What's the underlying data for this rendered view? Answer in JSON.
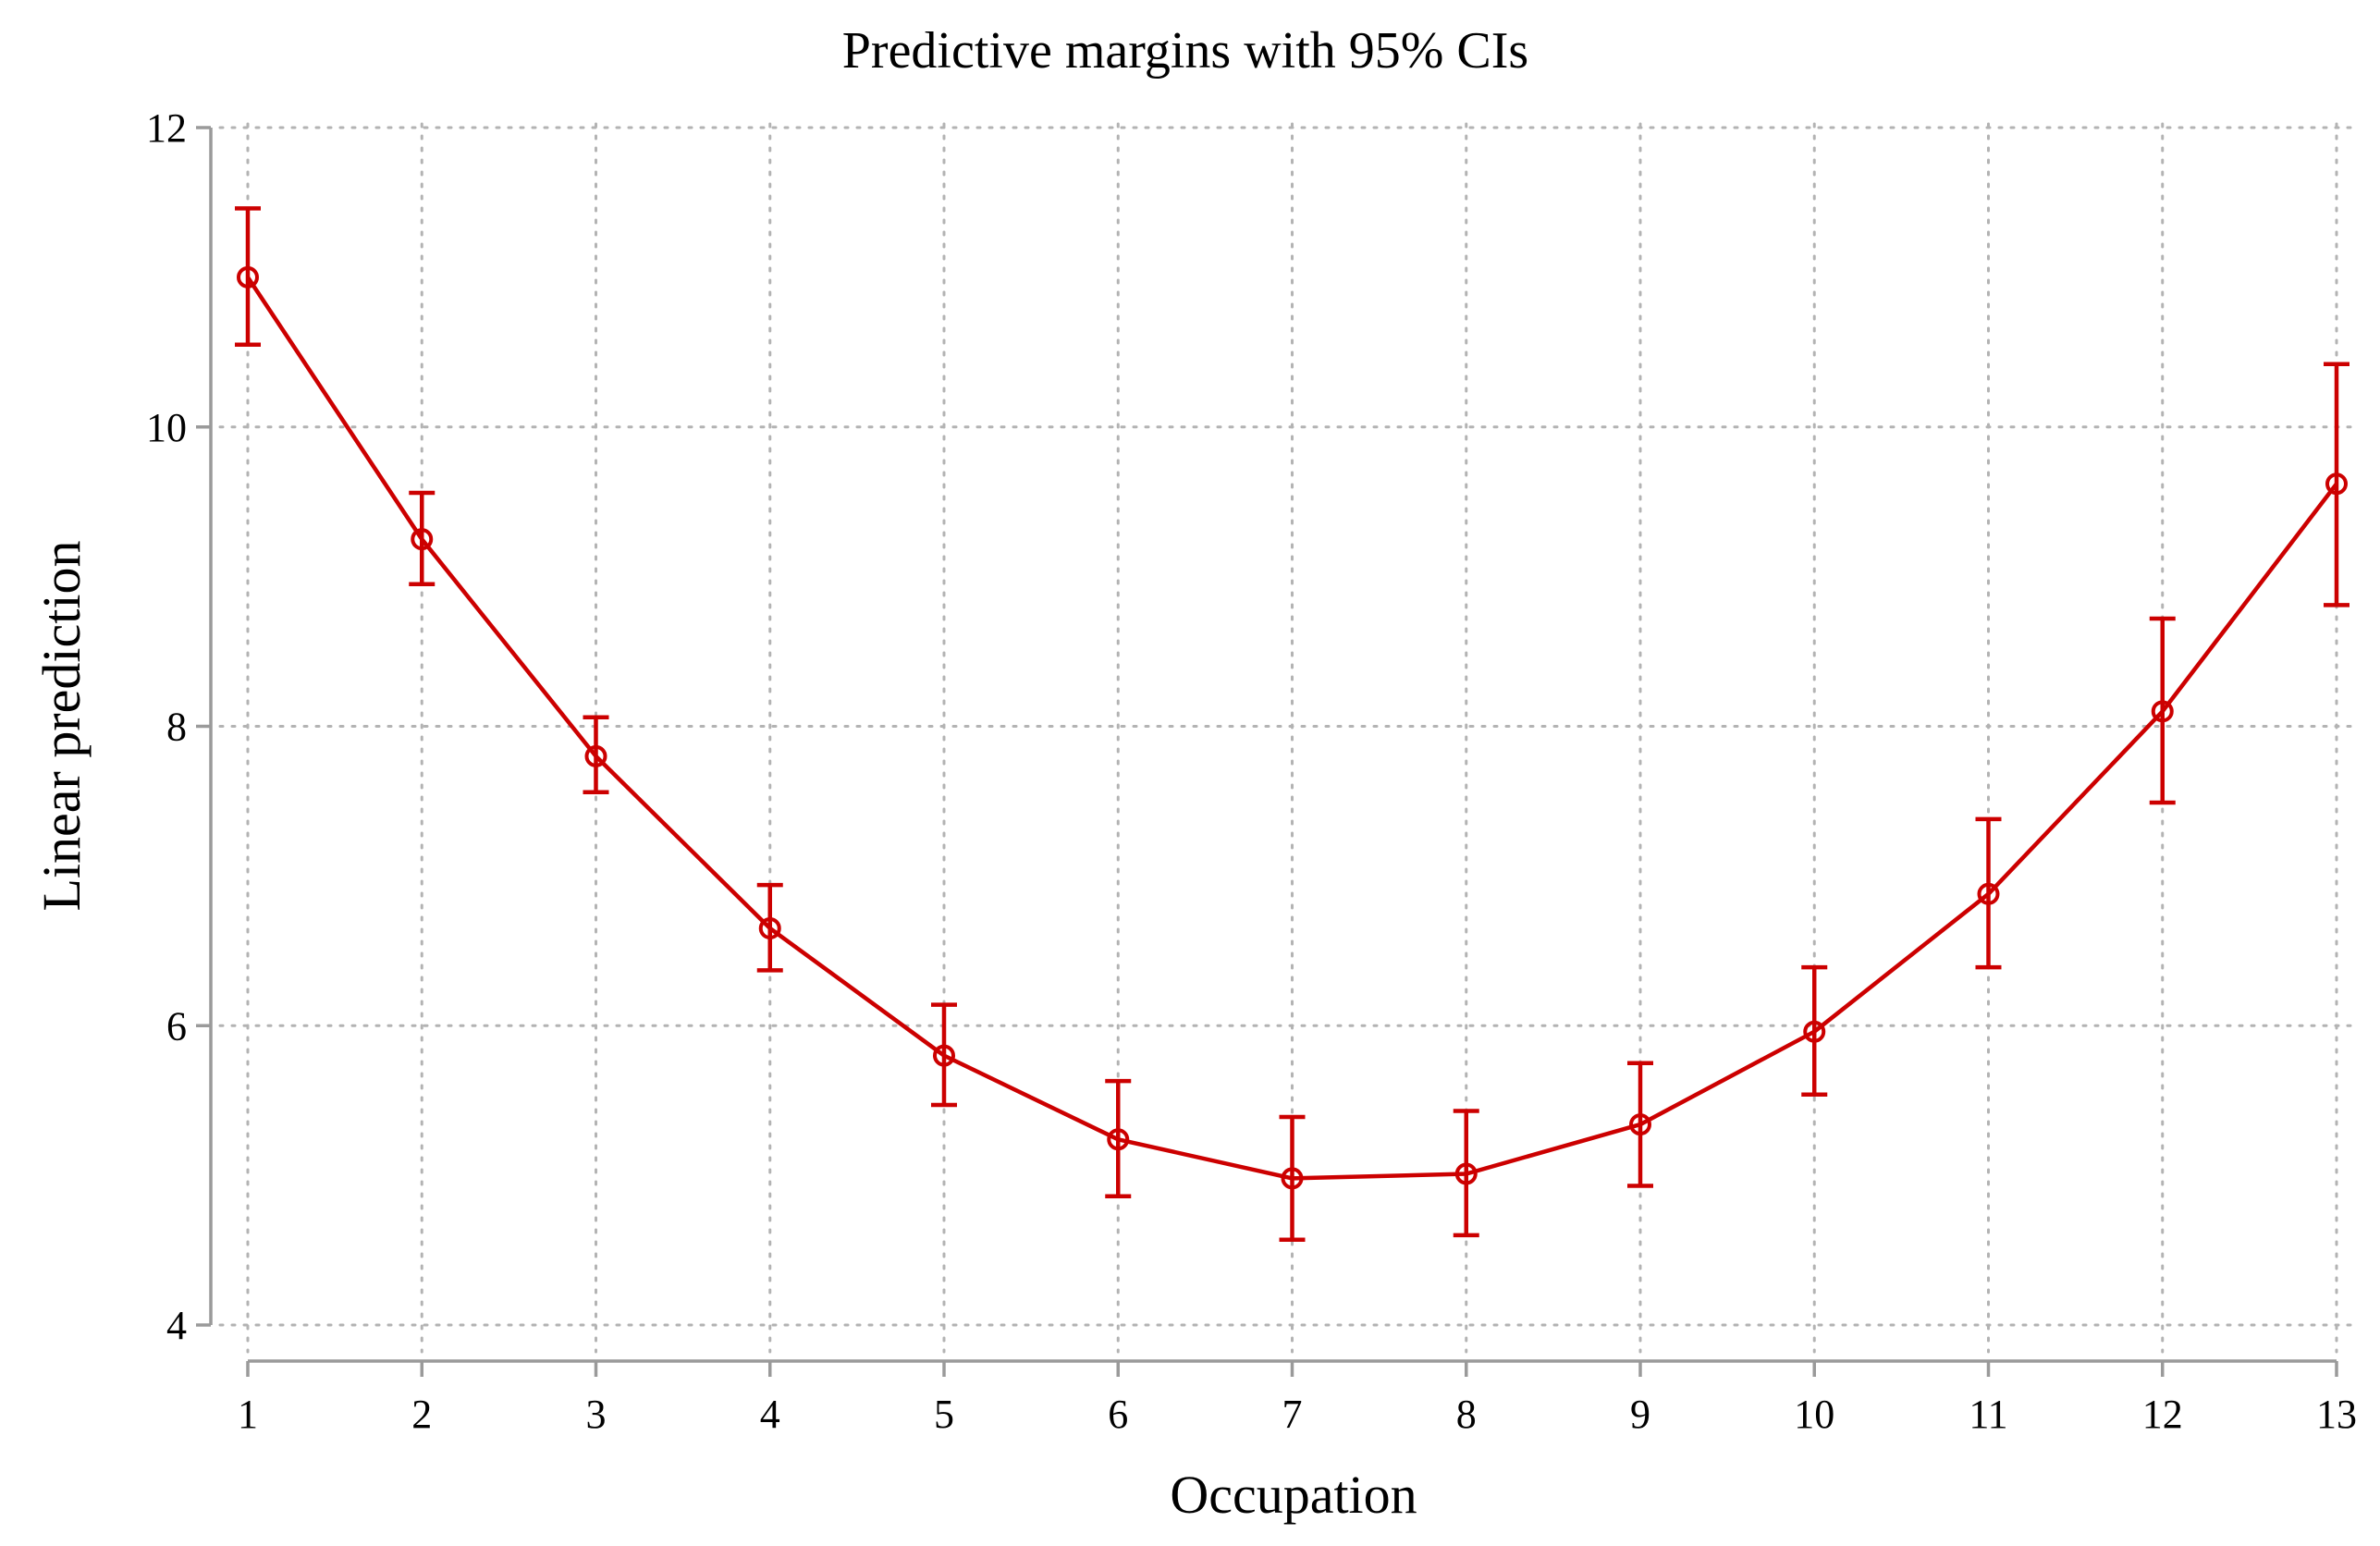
{
  "chart_data": {
    "type": "line",
    "title": "Predictive margins with 95% CIs",
    "xlabel": "Occupation",
    "ylabel": "Linear prediction",
    "x": [
      1,
      2,
      3,
      4,
      5,
      6,
      7,
      8,
      9,
      10,
      11,
      12,
      13
    ],
    "xticks": [
      "1",
      "2",
      "3",
      "4",
      "5",
      "6",
      "7",
      "8",
      "9",
      "10",
      "11",
      "12",
      "13"
    ],
    "yticks": [
      "4",
      "6",
      "8",
      "10",
      "12"
    ],
    "ytick_values": [
      4,
      6,
      8,
      10,
      12
    ],
    "ylim": [
      4,
      12
    ],
    "xlim": [
      1,
      13
    ],
    "grid": true,
    "series": [
      {
        "name": "Linear prediction",
        "color": "#cc0000",
        "values": [
          11.0,
          9.25,
          7.8,
          6.65,
          5.8,
          5.24,
          4.98,
          5.01,
          5.34,
          5.96,
          6.88,
          8.1,
          9.62
        ],
        "ci_lower": [
          10.55,
          8.95,
          7.56,
          6.37,
          5.47,
          4.86,
          4.57,
          4.6,
          4.93,
          5.54,
          6.39,
          7.49,
          8.81
        ],
        "ci_upper": [
          11.46,
          9.56,
          8.06,
          6.94,
          6.14,
          5.63,
          5.39,
          5.43,
          5.75,
          6.39,
          7.38,
          8.72,
          10.42
        ]
      }
    ]
  }
}
